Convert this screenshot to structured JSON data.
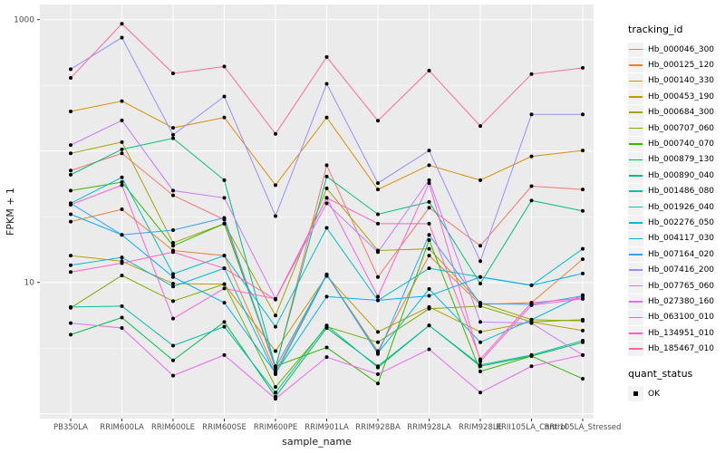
{
  "figure": {
    "panel_bg": "#EBEBEB",
    "gridline_color": "#FFFFFF",
    "point_color": "#000000",
    "tick_color": "#333333",
    "tick_label_color": "#4D4D4D",
    "axis_title_color": "#1A1A1A",
    "legend_key_bg": "#F2F2F2"
  },
  "legend": {
    "title": "tracking_id"
  },
  "quant_legend": {
    "title": "quant_status",
    "item_label": "OK"
  },
  "chart_data": {
    "type": "line",
    "title": "",
    "xlabel": "sample_name",
    "ylabel": "FPKM + 1",
    "y_scale": "log10",
    "ylim": [
      0.9,
      1300
    ],
    "y_tick_labels": [
      "1000",
      "10"
    ],
    "y_tick_values": [
      1000,
      10
    ],
    "y_gridline_values": [
      1,
      10,
      100,
      1000
    ],
    "grid": "on",
    "legend_position": "right",
    "point_marker": "black dot (quant_status OK)",
    "categories": [
      "PB350LA",
      "RRIM600LA",
      "RRIM600LE",
      "RRIM600SE",
      "RRIM600PE",
      "RRIM901LA",
      "RRIM928BA",
      "RRIM928LA",
      "RRIM928LE",
      "RRII105LA_Control",
      "RRII105LA_Stressed"
    ],
    "series": [
      {
        "name": "Hb_000046_300",
        "color": "#F8766D",
        "values": [
          71,
          96,
          46,
          30,
          2.2,
          78,
          11,
          37,
          19,
          54,
          51
        ]
      },
      {
        "name": "Hb_000125_120",
        "color": "#EA8331",
        "values": [
          29,
          36,
          17.5,
          16,
          2.1,
          11.5,
          3.0,
          16,
          6.8,
          7.0,
          15
        ]
      },
      {
        "name": "Hb_000140_330",
        "color": "#D89000",
        "values": [
          200,
          240,
          150,
          180,
          55,
          180,
          51,
          78,
          60,
          91,
          101
        ]
      },
      {
        "name": "Hb_000453_190",
        "color": "#C09B00",
        "values": [
          16,
          14.5,
          9.8,
          9.7,
          3.0,
          11.2,
          4.2,
          6.5,
          4.2,
          5.0,
          4.3
        ]
      },
      {
        "name": "Hb_000684_300",
        "color": "#A3A500",
        "values": [
          96,
          117,
          20,
          28,
          5.6,
          52,
          17.5,
          18,
          7.0,
          5.2,
          5.1
        ]
      },
      {
        "name": "Hb_000707_060",
        "color": "#7CAE00",
        "values": [
          6.4,
          11.3,
          7.2,
          9.7,
          1.6,
          4.6,
          3.5,
          6.3,
          6.6,
          5.0,
          5.2
        ]
      },
      {
        "name": "Hb_000740_070",
        "color": "#39B600",
        "values": [
          50,
          58,
          19,
          28,
          2.3,
          3.2,
          1.7,
          21,
          2.1,
          2.75,
          1.85
        ]
      },
      {
        "name": "Hb_000879_130",
        "color": "#00BB4E",
        "values": [
          4.0,
          5.4,
          2.55,
          5.0,
          1.35,
          4.5,
          2.3,
          4.7,
          2.3,
          2.75,
          3.5
        ]
      },
      {
        "name": "Hb_000890_040",
        "color": "#00BF7D",
        "values": [
          66,
          103,
          125,
          60,
          2.25,
          64,
          33,
          41,
          9.8,
          42,
          35
        ]
      },
      {
        "name": "Hb_001486_080",
        "color": "#00C1A3",
        "values": [
          6.5,
          6.6,
          3.3,
          4.6,
          1.45,
          4.7,
          2.25,
          4.7,
          2.35,
          2.8,
          3.6
        ]
      },
      {
        "name": "Hb_001926_040",
        "color": "#00BFC4",
        "values": [
          40,
          63,
          11.6,
          16,
          4.6,
          26,
          7.3,
          12.8,
          11,
          9.5,
          18
        ]
      },
      {
        "name": "Hb_002276_050",
        "color": "#00BAE0",
        "values": [
          13.5,
          15.5,
          9.3,
          12.8,
          2.0,
          11.4,
          2.9,
          8.9,
          3.5,
          5.2,
          8.0
        ]
      },
      {
        "name": "Hb_004117_030",
        "color": "#00B0F6",
        "values": [
          33,
          23,
          11,
          7.0,
          2.05,
          7.8,
          7.3,
          7.9,
          11,
          9.5,
          11.7
        ]
      },
      {
        "name": "Hb_007164_020",
        "color": "#35A2FF",
        "values": [
          40,
          23,
          25,
          31,
          2.25,
          11.5,
          2.85,
          23,
          6.9,
          6.8,
          7.9
        ]
      },
      {
        "name": "Hb_007416_200",
        "color": "#9590FF",
        "values": [
          420,
          730,
          133,
          260,
          32,
          325,
          57,
          101,
          14.5,
          190,
          190
        ]
      },
      {
        "name": "Hb_007765_060",
        "color": "#C77CFF",
        "values": [
          111,
          171,
          50,
          44,
          7.5,
          40,
          17,
          60,
          5.0,
          4.9,
          2.8
        ]
      },
      {
        "name": "Hb_027380_160",
        "color": "#E76BF3",
        "values": [
          4.9,
          4.5,
          1.95,
          2.8,
          1.3,
          2.7,
          2.0,
          3.1,
          1.45,
          2.3,
          2.8
        ]
      },
      {
        "name": "Hb_063100_010",
        "color": "#FA62DB",
        "values": [
          39,
          55,
          5.3,
          9.0,
          7.5,
          44,
          7.8,
          57,
          2.5,
          6.7,
          7.5
        ]
      },
      {
        "name": "Hb_134951_010",
        "color": "#FF62BC",
        "values": [
          12,
          14,
          17,
          12.8,
          7.4,
          44,
          28,
          28,
          2.6,
          7.0,
          7.6
        ]
      },
      {
        "name": "Hb_185467_010",
        "color": "#FF6A98",
        "values": [
          360,
          930,
          390,
          440,
          135,
          520,
          170,
          410,
          155,
          385,
          430
        ]
      }
    ]
  }
}
